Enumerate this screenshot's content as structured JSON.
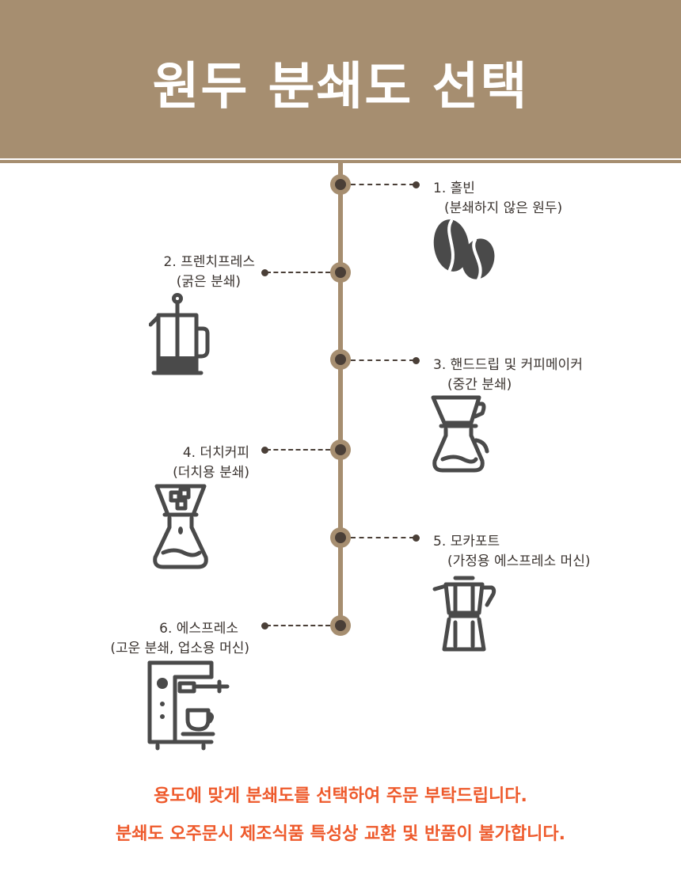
{
  "header": {
    "title": "원두 분쇄도 선택"
  },
  "steps": [
    {
      "title": "1. 홀빈",
      "subtitle": "(분쇄하지 않은 원두)",
      "icon": "coffee-beans-icon"
    },
    {
      "title": "2. 프렌치프레스",
      "subtitle": "(굵은 분쇄)",
      "icon": "french-press-icon"
    },
    {
      "title": "3. 핸드드립 및 커피메이커",
      "subtitle": "(중간 분쇄)",
      "icon": "pour-over-icon"
    },
    {
      "title": "4. 더치커피",
      "subtitle": "(더치용 분쇄)",
      "icon": "cold-brew-icon"
    },
    {
      "title": "5. 모카포트",
      "subtitle": "(가정용 에스프레소 머신)",
      "icon": "moka-pot-icon"
    },
    {
      "title": "6. 에스프레소",
      "subtitle": "(고운 분쇄, 업소용 머신)",
      "icon": "espresso-machine-icon"
    }
  ],
  "footer": {
    "line1": "용도에 맞게 분쇄도를 선택하여 주문 부탁드립니다.",
    "line2": "분쇄도 오주문시 제조식품 특성상 교환 및 반품이 불가합니다."
  },
  "colors": {
    "brand": "#a68e70",
    "dark": "#4a3f37",
    "notice": "#ee5a2c"
  }
}
